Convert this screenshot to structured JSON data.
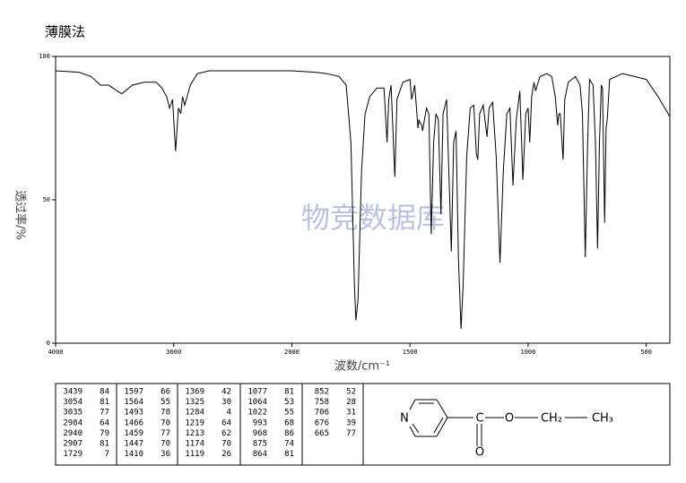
{
  "chart_data": {
    "type": "line",
    "title": "薄膜法",
    "xlabel": "波数/cm⁻¹",
    "ylabel": "透过率/%",
    "watermark": "物竞数据库",
    "xlim": [
      4000,
      400
    ],
    "x_scale_break": 2000,
    "x_scale_factor": 2,
    "xticks": [
      4000,
      3000,
      2000,
      1500,
      1000,
      500
    ],
    "ylim": [
      0,
      100
    ],
    "yticks": [
      0,
      50,
      100
    ],
    "color": "#000000",
    "x": [
      4000,
      3800,
      3700,
      3620,
      3550,
      3480,
      3439,
      3350,
      3250,
      3150,
      3100,
      3060,
      3035,
      3010,
      2984,
      2960,
      2940,
      2925,
      2907,
      2880,
      2860,
      2800,
      2700,
      2500,
      2200,
      2000,
      1900,
      1850,
      1800,
      1770,
      1750,
      1735,
      1729,
      1720,
      1705,
      1690,
      1670,
      1640,
      1610,
      1597,
      1590,
      1580,
      1564,
      1555,
      1530,
      1500,
      1493,
      1480,
      1466,
      1462,
      1459,
      1450,
      1447,
      1430,
      1420,
      1410,
      1400,
      1390,
      1380,
      1369,
      1360,
      1345,
      1325,
      1315,
      1305,
      1295,
      1284,
      1275,
      1260,
      1245,
      1230,
      1219,
      1213,
      1205,
      1190,
      1174,
      1165,
      1150,
      1135,
      1119,
      1105,
      1090,
      1077,
      1064,
      1050,
      1035,
      1022,
      1010,
      1000,
      993,
      985,
      975,
      968,
      950,
      920,
      900,
      885,
      875,
      870,
      864,
      852,
      845,
      830,
      800,
      780,
      770,
      758,
      748,
      740,
      725,
      715,
      706,
      698,
      690,
      685,
      676,
      670,
      665,
      655,
      600,
      500,
      450,
      400
    ],
    "values": [
      95,
      94.5,
      93,
      90,
      90,
      88,
      87,
      90,
      91,
      91,
      89,
      86,
      82,
      85,
      67,
      82,
      80,
      86,
      83,
      87,
      90,
      94,
      95,
      95,
      95,
      95,
      94.5,
      94,
      93,
      90,
      70,
      20,
      8,
      15,
      60,
      80,
      86,
      89,
      89,
      70,
      85,
      90,
      58,
      85,
      91,
      92,
      85,
      90,
      75,
      78,
      77,
      76,
      74,
      82,
      80,
      38,
      70,
      80,
      78,
      45,
      80,
      85,
      32,
      70,
      74,
      30,
      5,
      20,
      65,
      82,
      83,
      66,
      64,
      80,
      83,
      72,
      82,
      84,
      65,
      28,
      60,
      80,
      82,
      55,
      78,
      88,
      57,
      80,
      82,
      70,
      86,
      91,
      88,
      93,
      94,
      93,
      86,
      76,
      80,
      80,
      64,
      85,
      91,
      93,
      90,
      80,
      30,
      70,
      92,
      90,
      70,
      33,
      70,
      90,
      89,
      42,
      75,
      78,
      92,
      94,
      92,
      86,
      79
    ]
  },
  "table": {
    "columns": [
      [
        [
          "3439",
          "84"
        ],
        [
          "3054",
          "81"
        ],
        [
          "3035",
          "77"
        ],
        [
          "2984",
          "64"
        ],
        [
          "2940",
          "79"
        ],
        [
          "2907",
          "81"
        ],
        [
          "1729",
          "7"
        ]
      ],
      [
        [
          "1597",
          "66"
        ],
        [
          "1564",
          "55"
        ],
        [
          "1493",
          "78"
        ],
        [
          "1466",
          "70"
        ],
        [
          "1459",
          "77"
        ],
        [
          "1447",
          "70"
        ],
        [
          "1410",
          "36"
        ]
      ],
      [
        [
          "1369",
          "42"
        ],
        [
          "1325",
          "30"
        ],
        [
          "1284",
          "4"
        ],
        [
          "1219",
          "64"
        ],
        [
          "1213",
          "62"
        ],
        [
          "1174",
          "70"
        ],
        [
          "1119",
          "26"
        ]
      ],
      [
        [
          "1077",
          "81"
        ],
        [
          "1064",
          "53"
        ],
        [
          "1022",
          "55"
        ],
        [
          "993",
          "68"
        ],
        [
          "968",
          "86"
        ],
        [
          "875",
          "74"
        ],
        [
          "864",
          "81"
        ]
      ],
      [
        [
          "852",
          "52"
        ],
        [
          "758",
          "28"
        ],
        [
          "706",
          "31"
        ],
        [
          "676",
          "39"
        ],
        [
          "665",
          "77"
        ]
      ]
    ]
  },
  "structure": {
    "labels": [
      "N",
      "C",
      "O",
      "O",
      "CH₂",
      "CH₃"
    ]
  }
}
